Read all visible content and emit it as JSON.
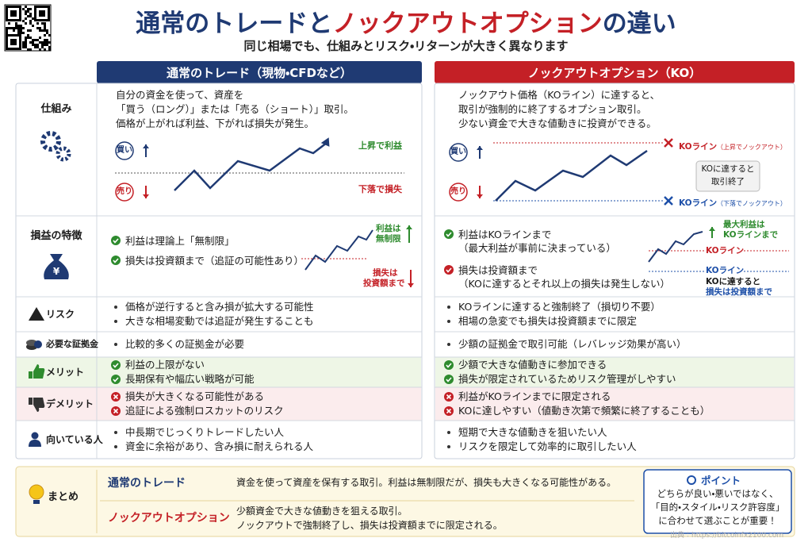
{
  "header": {
    "title_parts": [
      "通常のトレード",
      "と",
      "ノックアウトオプション",
      "の違い"
    ],
    "subtitle": "同じ相場でも、仕組みとリスク・リターンが大きく異なります"
  },
  "columns": [
    "通常のトレード（現物・CFDなど）",
    "ノックアウトオプション（KO）"
  ],
  "rows": [
    {
      "label": "仕組み",
      "left": {
        "lines": [
          "自分の資金を使って、資産を",
          "「買う（ロング）」または「売る（ショート）」取引。",
          "価格が上がれば利益、下がれば損失が発生。"
        ],
        "chart": {
          "buy": "買い",
          "sell": "売り",
          "up": "上昇で利益",
          "down": "下落で損失"
        }
      },
      "right": {
        "lines": [
          "ノックアウト価格（KOライン）に達すると、",
          "取引が強制的に終了するオプション取引。",
          "少ない資金で大きな値動きに投資ができる。"
        ],
        "chart": {
          "buy": "買い",
          "sell": "売り",
          "upper_line": "KOライン",
          "upper_note": "（上昇でノックアウト）",
          "box": [
            "KOに達すると",
            "取引終了"
          ],
          "lower_line": "KOライン",
          "lower_note": "（下落でノックアウト）"
        }
      }
    },
    {
      "label": "損益の特徴",
      "left": {
        "items": [
          "利益は理論上「無制限」",
          "損失は投資額まで（追証の可能性あり）"
        ],
        "chart": {
          "profit": [
            "利益は",
            "無制限"
          ],
          "loss": [
            "損失は",
            "投資額まで"
          ]
        }
      },
      "right": {
        "items": [
          [
            "利益はKOラインまで",
            "（最大利益が事前に決まっている）"
          ],
          [
            "損失は投資額まで",
            "（KOに達するとそれ以上の損失は発生しない）"
          ]
        ],
        "chart": {
          "max": [
            "最大利益は",
            "KOラインまで"
          ],
          "upper_line": "KOライン",
          "lower_line": "KOライン",
          "note": [
            "KOに達すると",
            "損失は投資額まで"
          ]
        }
      }
    },
    {
      "label": "リスク",
      "left": [
        "価格が逆行すると含み損が拡大する可能性",
        "大きな相場変動では追証が発生することも"
      ],
      "right": [
        "KOラインに達すると強制終了（損切り不要）",
        "相場の急変でも損失は投資額までに限定"
      ]
    },
    {
      "label": "必要な証拠金",
      "left": [
        "比較的多くの証拠金が必要"
      ],
      "right": [
        "少額の証拠金で取引可能（レバレッジ効果が高い）"
      ]
    },
    {
      "label": "メリット",
      "left": [
        "利益の上限がない",
        "長期保有や幅広い戦略が可能"
      ],
      "right": [
        "少額で大きな値動きに参加できる",
        "損失が限定されているためリスク管理がしやすい"
      ]
    },
    {
      "label": "デメリット",
      "left": [
        "損失が大きくなる可能性がある",
        "追証による強制ロスカットのリスク"
      ],
      "right": [
        "利益がKOラインまでに限定される",
        "KOに達しやすい（値動き次第で頻繁に終了することも）"
      ]
    },
    {
      "label": "向いている人",
      "left": [
        "中長期でじっくりトレードしたい人",
        "資金に余裕があり、含み損に耐えられる人"
      ],
      "right": [
        "短期で大きな値動きを狙いたい人",
        "リスクを限定して効率的に取引したい人"
      ]
    }
  ],
  "summary": {
    "label": "まとめ",
    "rows": [
      {
        "name": "通常のトレード",
        "text": [
          "資金を使って資産を保有する取引。利益は無制限だが、損失も大きくなる可能性がある。"
        ]
      },
      {
        "name": "ノックアウトオプション",
        "text": [
          "少額資金で大きな値動きを狙える取引。",
          "ノックアウトで強制終了し、損失は投資額までに限定される。"
        ]
      }
    ],
    "point": {
      "title": "ポイント",
      "lines": [
        "どちらが良い・悪いではなく、",
        "「目的・スタイル・リスク許容度」",
        "に合わせて選ぶことが重要！"
      ]
    }
  },
  "footer": "出典：https://bitcoinfx2100.com"
}
